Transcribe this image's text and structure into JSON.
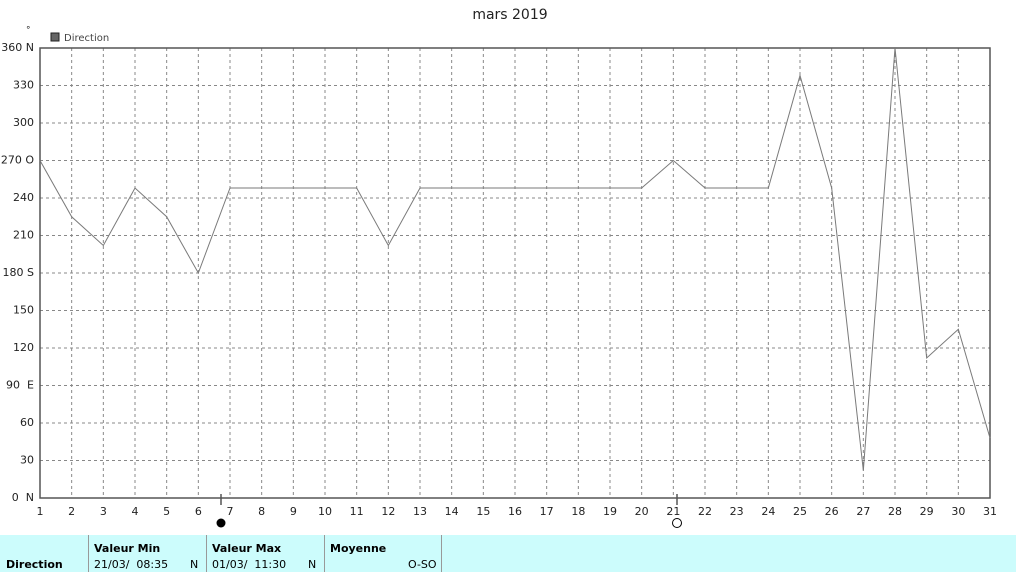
{
  "chart_data": {
    "type": "line",
    "title": "mars 2019",
    "y_unit": "°",
    "x": [
      1,
      2,
      3,
      4,
      5,
      6,
      7,
      8,
      9,
      10,
      11,
      12,
      13,
      14,
      15,
      16,
      17,
      18,
      19,
      20,
      21,
      22,
      23,
      24,
      25,
      26,
      27,
      28,
      29,
      30,
      31
    ],
    "series": [
      {
        "name": "Direction",
        "color": "#7a7a7a",
        "values": [
          270,
          225,
          202,
          248,
          225,
          180,
          248,
          248,
          248,
          248,
          248,
          202,
          248,
          248,
          248,
          248,
          248,
          248,
          248,
          248,
          270,
          248,
          248,
          248,
          338,
          248,
          22,
          360,
          112,
          135,
          48
        ]
      }
    ],
    "xlim": [
      1,
      31
    ],
    "xticks": [
      1,
      2,
      3,
      4,
      5,
      6,
      7,
      8,
      9,
      10,
      11,
      12,
      13,
      14,
      15,
      16,
      17,
      18,
      19,
      20,
      21,
      22,
      23,
      24,
      25,
      26,
      27,
      28,
      29,
      30,
      31
    ],
    "ylim": [
      0,
      360
    ],
    "yticks": [
      {
        "value": 0,
        "label": "0  N"
      },
      30,
      60,
      {
        "value": 90,
        "label": "90  E"
      },
      120,
      150,
      {
        "value": 180,
        "label": "180 S"
      },
      210,
      240,
      {
        "value": 270,
        "label": "270 O"
      },
      300,
      330,
      {
        "value": 360,
        "label": "360 N"
      }
    ],
    "grid": true,
    "legend": "top-left"
  },
  "table": {
    "row_label": "Direction",
    "columns": [
      {
        "header": "Valeur Min",
        "date": "21/03/  08:35",
        "dir": "N"
      },
      {
        "header": "Valeur Max",
        "date": "01/03/  11:30",
        "dir": "N"
      },
      {
        "header": "Moyenne",
        "date": "",
        "dir": "O-SO"
      }
    ]
  }
}
